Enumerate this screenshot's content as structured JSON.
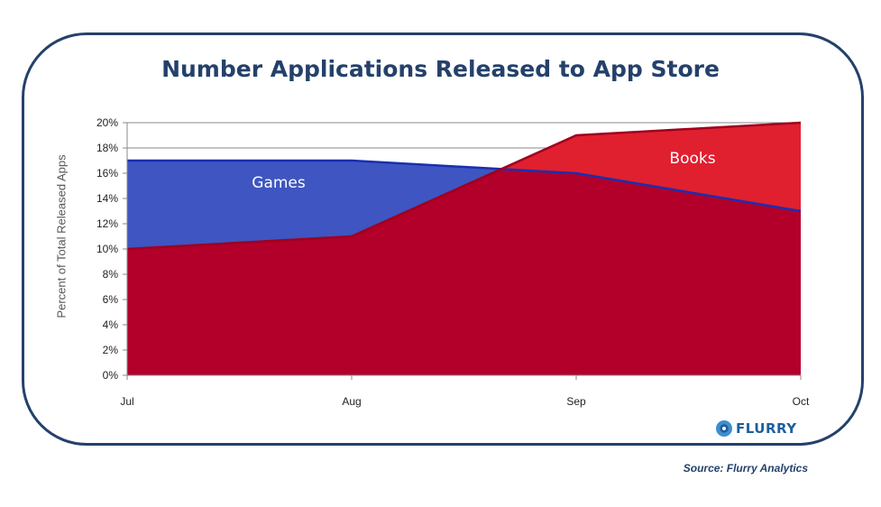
{
  "chart_data": {
    "type": "area",
    "title": "Number Applications Released to App Store",
    "ylabel": "Percent of Total Released Apps",
    "xlabel": "",
    "categories": [
      "Jul",
      "Aug",
      "Sep",
      "Oct"
    ],
    "ylim": [
      0,
      20
    ],
    "yticks": [
      "0%",
      "2%",
      "4%",
      "6%",
      "8%",
      "10%",
      "12%",
      "14%",
      "16%",
      "18%",
      "20%"
    ],
    "grid": true,
    "series": [
      {
        "name": "Games",
        "values": [
          17,
          17,
          16,
          13
        ],
        "color": "#3f55c1",
        "edge": "#1a2fb0"
      },
      {
        "name": "Books",
        "values": [
          10,
          11,
          19,
          20
        ],
        "color": "#e0202f",
        "edge": "#a0001e"
      }
    ],
    "overlap_color": "#b2002a"
  },
  "branding": {
    "logo_text": "FLURRY",
    "logo_icon": "flurry-logo-icon"
  },
  "source": "Source: Flurry Analytics"
}
